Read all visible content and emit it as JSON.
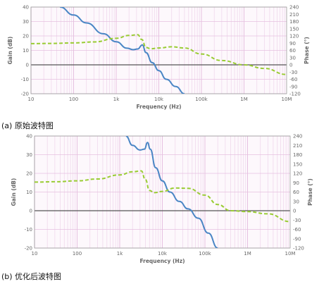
{
  "colors": {
    "gain": "#4a86c5",
    "phase": "#99cc33",
    "grid_minor": "#f0d8ec",
    "grid_major": "#e6c0e0",
    "zero_line": "#555555",
    "plot_bg": "#fdf8fc"
  },
  "chart_data": [
    {
      "type": "line",
      "caption": "(a) 原始波特图",
      "xlabel": "Frequency (Hz)",
      "ylabel": "Gain (dB)",
      "y2label": "Phase (°)",
      "xscale": "log",
      "xlim": [
        10,
        10000000
      ],
      "ylim": [
        -20,
        40
      ],
      "y2lim": [
        -120,
        240
      ],
      "x_ticks": [
        "10",
        "100",
        "1k",
        "10k",
        "100k",
        "1M",
        "10M"
      ],
      "y_ticks": [
        "40",
        "30",
        "20",
        "10",
        "0",
        "-10",
        "-20"
      ],
      "y2_ticks": [
        "240",
        "210",
        "180",
        "150",
        "120",
        "90",
        "60",
        "30",
        "0",
        "-30",
        "-60",
        "-90",
        "-120"
      ],
      "grid": true,
      "series": [
        {
          "name": "Gain",
          "axis": "left",
          "style": "solid",
          "x": [
            48,
            100,
            200,
            500,
            1000,
            1800,
            2500,
            3200,
            4100,
            5000,
            7000,
            10000,
            15000,
            25000,
            40000
          ],
          "y": [
            40,
            34.5,
            29,
            21.5,
            16,
            11.5,
            10.5,
            11,
            13.8,
            8.5,
            1.5,
            -4,
            -10,
            -15,
            -20
          ]
        },
        {
          "name": "Phase",
          "axis": "right",
          "style": "dashed",
          "x": [
            10,
            30,
            100,
            300,
            1000,
            2000,
            3200,
            4000,
            5000,
            6500,
            10000,
            20000,
            40000,
            100000,
            300000,
            1000000,
            3000000,
            10000000
          ],
          "y": [
            88,
            89,
            91,
            95,
            110,
            122,
            125,
            105,
            72,
            67,
            70,
            75,
            70,
            45,
            18,
            0,
            -15,
            -40
          ]
        }
      ]
    },
    {
      "type": "line",
      "caption": "(b) 优化后波特图",
      "xlabel": "Frequency (Hz)",
      "ylabel": "Gain (dB)",
      "y2label": "Phase (°)",
      "xscale": "log",
      "xlim": [
        10,
        10000000
      ],
      "ylim": [
        -20,
        40
      ],
      "y2lim": [
        -120,
        240
      ],
      "x_ticks": [
        "10",
        "100",
        "1k",
        "10k",
        "100k",
        "1M",
        "10M"
      ],
      "y_ticks": [
        "40",
        "30",
        "20",
        "10",
        "0",
        "-10",
        "-20"
      ],
      "y2_ticks": [
        "240",
        "210",
        "180",
        "150",
        "120",
        "90",
        "60",
        "30",
        "0",
        "-30",
        "-60",
        "-90",
        "-120"
      ],
      "grid": true,
      "series": [
        {
          "name": "Gain",
          "axis": "left",
          "style": "solid",
          "x": [
            1400,
            2000,
            3000,
            3800,
            4500,
            5200,
            7000,
            10000,
            15000,
            25000,
            40000,
            70000,
            120000,
            200000
          ],
          "y": [
            40,
            35,
            32.5,
            33,
            36.5,
            33,
            23,
            16,
            10,
            5,
            1,
            -4,
            -12,
            -20
          ]
        },
        {
          "name": "Phase",
          "axis": "right",
          "style": "dashed",
          "x": [
            10,
            30,
            100,
            300,
            1000,
            2000,
            3200,
            4000,
            5000,
            6500,
            10000,
            20000,
            40000,
            100000,
            200000,
            400000,
            1000000,
            3000000,
            10000000
          ],
          "y": [
            92,
            93,
            96,
            102,
            115,
            125,
            128,
            100,
            65,
            58,
            62,
            73,
            72,
            50,
            20,
            0,
            -3,
            -10,
            -35
          ]
        }
      ]
    }
  ]
}
